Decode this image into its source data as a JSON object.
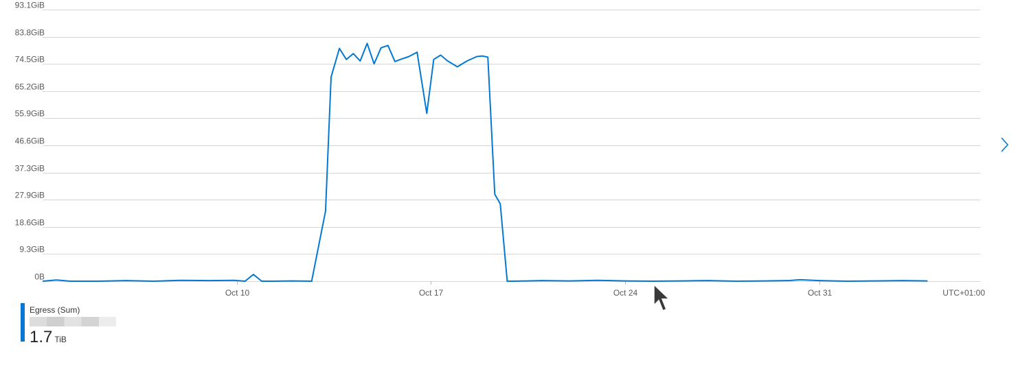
{
  "chart_data": {
    "type": "line",
    "y_ticks": [
      "0B",
      "9.3GiB",
      "18.6GiB",
      "27.9GiB",
      "37.3GiB",
      "46.6GiB",
      "55.9GiB",
      "65.2GiB",
      "74.5GiB",
      "83.8GiB",
      "93.1GiB"
    ],
    "ylim": [
      0,
      93.1
    ],
    "y_unit": "GiB",
    "xlim": [
      3.0,
      36.8
    ],
    "x_ticks": [
      {
        "label": "Oct 10",
        "day": 10
      },
      {
        "label": "Oct 17",
        "day": 17
      },
      {
        "label": "Oct 24",
        "day": 24
      },
      {
        "label": "Oct 31",
        "day": 31
      }
    ],
    "timezone_label": "UTC+01:00",
    "grid": true,
    "series": [
      {
        "name": "Egress (Sum)",
        "color": "#0078d4",
        "x": [
          3.0,
          3.5,
          4.0,
          5.0,
          6.0,
          7.0,
          8.0,
          9.0,
          9.9,
          10.3,
          10.6,
          10.9,
          11.3,
          12.0,
          12.7,
          13.2,
          13.4,
          13.7,
          13.95,
          14.2,
          14.45,
          14.7,
          14.95,
          15.2,
          15.45,
          15.7,
          15.95,
          16.2,
          16.5,
          16.85,
          17.1,
          17.35,
          17.6,
          17.95,
          18.3,
          18.65,
          18.85,
          19.05,
          19.3,
          19.5,
          19.75,
          20.0,
          21.0,
          22.0,
          23.0,
          24.0,
          25.0,
          26.0,
          27.0,
          28.0,
          29.0,
          29.9,
          30.3,
          31.0,
          32.0,
          33.0,
          34.0,
          34.9
        ],
        "values": [
          0,
          0.4,
          0,
          0,
          0.2,
          0,
          0.3,
          0.2,
          0.3,
          0,
          2.3,
          0,
          0,
          0.1,
          0,
          24.0,
          70.0,
          79.8,
          76.0,
          78.0,
          75.5,
          81.5,
          74.5,
          80.0,
          80.8,
          75.3,
          76.2,
          77.0,
          78.5,
          57.5,
          76.0,
          77.5,
          75.5,
          73.5,
          75.5,
          77.0,
          77.2,
          76.8,
          29.8,
          26.5,
          0,
          0,
          0.2,
          0.1,
          0.3,
          0.1,
          0,
          0.1,
          0.2,
          0,
          0.1,
          0.2,
          0.5,
          0.2,
          0,
          0.1,
          0.2,
          0.1
        ]
      }
    ]
  },
  "legend": {
    "series_name": "Egress (Sum)",
    "total_value": "1.7",
    "total_unit": "TiB",
    "color": "#0078d4"
  },
  "icons": {
    "next": "chevron-right-icon",
    "cursor": "mouse-pointer-icon"
  }
}
